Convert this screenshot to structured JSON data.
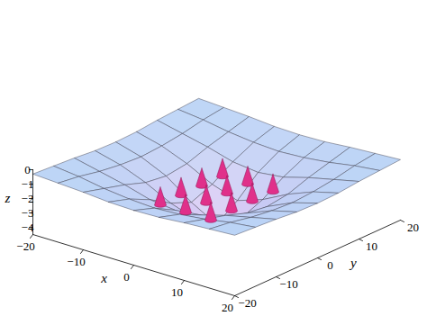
{
  "chart_data": {
    "type": "surface",
    "x_label": "x",
    "y_label": "y",
    "z_label": "z",
    "xlim": [
      -20,
      20
    ],
    "ylim": [
      -20,
      20
    ],
    "zlim": [
      -4.5,
      0
    ],
    "xticks": [
      -20,
      -10,
      0,
      10,
      20
    ],
    "yticks": [
      -20,
      -10,
      0,
      10,
      20
    ],
    "zticks": [
      0,
      -1,
      -2,
      -3,
      -4
    ],
    "surface": {
      "x": [
        -20,
        -15,
        -10,
        -5,
        0,
        5,
        10,
        15,
        20
      ],
      "y": [
        -20,
        -15,
        -10,
        -5,
        0,
        5,
        10,
        15,
        20
      ],
      "z": [
        [
          -0.3,
          -0.4,
          -0.5,
          -0.65,
          -0.7,
          -0.65,
          -0.5,
          -0.4,
          -0.3
        ],
        [
          -0.4,
          -0.6,
          -0.9,
          -1.1,
          -1.2,
          -1.1,
          -0.9,
          -0.6,
          -0.4
        ],
        [
          -0.5,
          -0.9,
          -1.3,
          -1.8,
          -2.0,
          -1.8,
          -1.3,
          -0.9,
          -0.5
        ],
        [
          -0.65,
          -1.1,
          -1.8,
          -2.7,
          -3.3,
          -2.7,
          -1.8,
          -1.1,
          -0.65
        ],
        [
          -0.7,
          -1.2,
          -2.0,
          -3.3,
          -4.3,
          -3.3,
          -2.0,
          -1.2,
          -0.7
        ],
        [
          -0.65,
          -1.1,
          -1.8,
          -2.7,
          -3.3,
          -2.7,
          -1.8,
          -1.1,
          -0.65
        ],
        [
          -0.5,
          -0.9,
          -1.3,
          -1.8,
          -2.0,
          -1.8,
          -1.3,
          -0.9,
          -0.5
        ],
        [
          -0.4,
          -0.6,
          -0.9,
          -1.1,
          -1.2,
          -1.1,
          -0.9,
          -0.6,
          -0.4
        ],
        [
          -0.3,
          -0.4,
          -0.5,
          -0.65,
          -0.7,
          -0.65,
          -0.5,
          -0.4,
          -0.3
        ]
      ]
    },
    "vectors": {
      "color": "#e0308a",
      "points": [
        {
          "x": -5,
          "y": 7.5,
          "z": -2.5
        },
        {
          "x": -5,
          "y": 2.5,
          "z": -2.5
        },
        {
          "x": -5,
          "y": -2.5,
          "z": -2.5
        },
        {
          "x": -5,
          "y": -7.5,
          "z": -2.5
        },
        {
          "x": 0,
          "y": 7.5,
          "z": -2.5
        },
        {
          "x": 0,
          "y": 2.5,
          "z": -2.5
        },
        {
          "x": 0,
          "y": -2.5,
          "z": -2.5
        },
        {
          "x": 0,
          "y": -7.5,
          "z": -2.5
        },
        {
          "x": 5,
          "y": 7.5,
          "z": -2.5
        },
        {
          "x": 5,
          "y": 2.5,
          "z": -2.5
        },
        {
          "x": 5,
          "y": -2.5,
          "z": -2.5
        },
        {
          "x": 5,
          "y": -7.5,
          "z": -2.5
        }
      ]
    }
  }
}
